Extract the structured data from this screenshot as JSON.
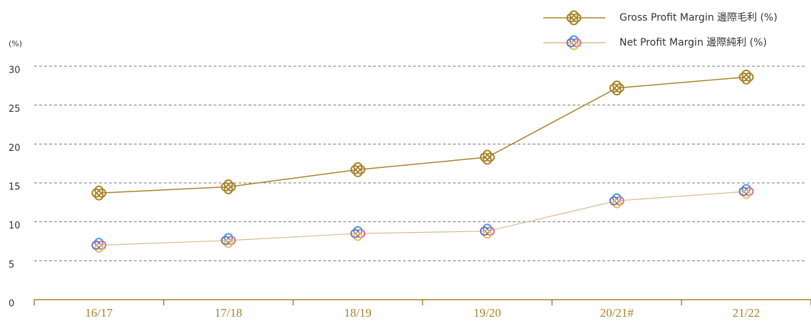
{
  "chart_data": {
    "type": "line",
    "y_label": "(%)",
    "categories": [
      "16/17",
      "17/18",
      "18/19",
      "19/20",
      "20/21#",
      "21/22"
    ],
    "series": [
      {
        "name": "Gross Profit Margin 邊際毛利 (%)",
        "color": "#a8832a",
        "values": [
          13.7,
          14.5,
          16.7,
          18.3,
          27.2,
          28.6
        ]
      },
      {
        "name": "Net Profit Margin 邊際純利 (%)",
        "color": "#d9bc8c",
        "values": [
          7.0,
          7.6,
          8.5,
          8.8,
          12.7,
          13.9
        ]
      }
    ],
    "ylim": [
      0,
      30
    ],
    "yticks": [
      0,
      5,
      10,
      15,
      20,
      25,
      30
    ],
    "grid": true
  }
}
